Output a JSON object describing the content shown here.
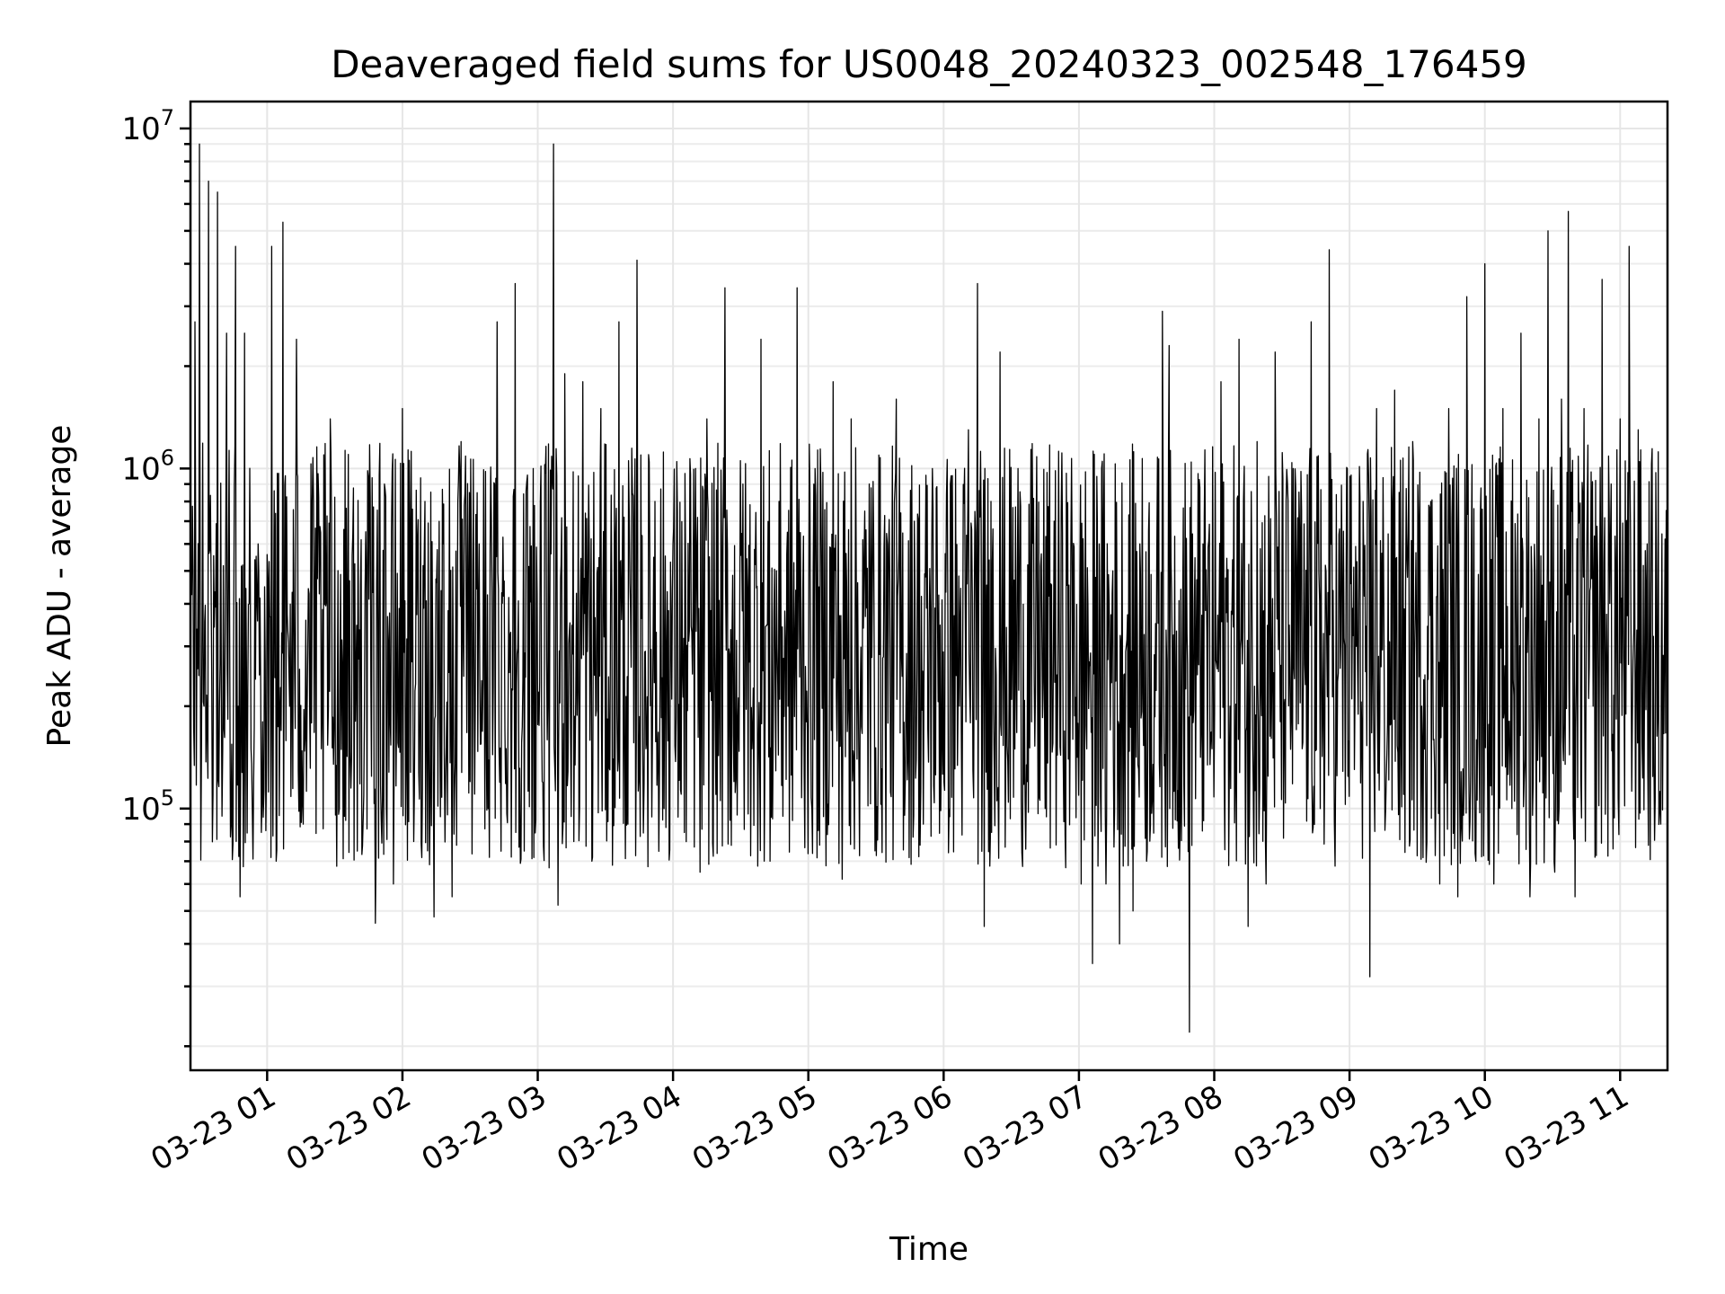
{
  "chart_data": {
    "type": "line",
    "title": "Deaveraged field sums for US0048_20240323_002548_176459",
    "xlabel": "Time",
    "ylabel": "Peak ADU - average",
    "x_scale": "time",
    "y_scale": "log",
    "xlim": [
      "2024-03-23 00:26",
      "2024-03-23 11:21"
    ],
    "ylim": [
      17000,
      12000000
    ],
    "grid": true,
    "x_ticks": [
      "03-23 01",
      "03-23 02",
      "03-23 03",
      "03-23 04",
      "03-23 05",
      "03-23 06",
      "03-23 07",
      "03-23 08",
      "03-23 09",
      "03-23 10",
      "03-23 11"
    ],
    "y_ticks": [
      {
        "base": "10",
        "exp": "5",
        "value": 100000
      },
      {
        "base": "10",
        "exp": "6",
        "value": 1000000
      },
      {
        "base": "10",
        "exp": "7",
        "value": 10000000
      }
    ],
    "line_color": "#000000",
    "series": [
      {
        "values": [
          [
            "00:26",
            500000
          ],
          [
            "00:28",
            2700000
          ],
          [
            "00:30",
            9000000
          ],
          [
            "00:32",
            200000
          ],
          [
            "00:34",
            7000000
          ],
          [
            "00:36",
            110000
          ],
          [
            "00:38",
            6500000
          ],
          [
            "00:40",
            95000
          ],
          [
            "00:42",
            2500000
          ],
          [
            "00:44",
            90000
          ],
          [
            "00:46",
            4500000
          ],
          [
            "00:48",
            55000
          ],
          [
            "00:50",
            2500000
          ],
          [
            "00:52",
            400000
          ],
          [
            "00:54",
            120000
          ],
          [
            "00:56",
            600000
          ],
          [
            "00:58",
            180000
          ],
          [
            "01:02",
            4500000
          ],
          [
            "01:04",
            70000
          ],
          [
            "01:07",
            5300000
          ],
          [
            "01:10",
            200000
          ],
          [
            "01:13",
            2400000
          ],
          [
            "01:16",
            90000
          ],
          [
            "01:20",
            800000
          ],
          [
            "01:24",
            150000
          ],
          [
            "01:28",
            1400000
          ],
          [
            "01:32",
            100000
          ],
          [
            "01:36",
            1100000
          ],
          [
            "01:40",
            75000
          ],
          [
            "01:44",
            500000
          ],
          [
            "01:48",
            46000
          ],
          [
            "01:52",
            900000
          ],
          [
            "01:56",
            60000
          ],
          [
            "02:00",
            1500000
          ],
          [
            "02:05",
            80000
          ],
          [
            "02:10",
            800000
          ],
          [
            "02:14",
            48000
          ],
          [
            "02:18",
            600000
          ],
          [
            "02:22",
            55000
          ],
          [
            "02:26",
            1200000
          ],
          [
            "02:30",
            120000
          ],
          [
            "02:34",
            600000
          ],
          [
            "02:38",
            100000
          ],
          [
            "02:42",
            2700000
          ],
          [
            "02:46",
            150000
          ],
          [
            "02:50",
            3500000
          ],
          [
            "02:54",
            75000
          ],
          [
            "02:58",
            1000000
          ],
          [
            "03:02",
            120000
          ],
          [
            "03:07",
            9000000
          ],
          [
            "03:09",
            52000
          ],
          [
            "03:12",
            1900000
          ],
          [
            "03:16",
            80000
          ],
          [
            "03:20",
            1800000
          ],
          [
            "03:24",
            70000
          ],
          [
            "03:28",
            1500000
          ],
          [
            "03:32",
            130000
          ],
          [
            "03:36",
            2700000
          ],
          [
            "03:40",
            90000
          ],
          [
            "03:44",
            4100000
          ],
          [
            "03:48",
            150000
          ],
          [
            "03:52",
            800000
          ],
          [
            "03:56",
            100000
          ],
          [
            "04:00",
            600000
          ],
          [
            "04:05",
            85000
          ],
          [
            "04:10",
            1000000
          ],
          [
            "04:12",
            65000
          ],
          [
            "04:15",
            1400000
          ],
          [
            "04:19",
            110000
          ],
          [
            "04:23",
            3400000
          ],
          [
            "04:27",
            120000
          ],
          [
            "04:31",
            900000
          ],
          [
            "04:35",
            150000
          ],
          [
            "04:39",
            2400000
          ],
          [
            "04:43",
            70000
          ],
          [
            "04:47",
            800000
          ],
          [
            "04:51",
            200000
          ],
          [
            "04:55",
            3400000
          ],
          [
            "04:59",
            180000
          ],
          [
            "05:03",
            1000000
          ],
          [
            "05:07",
            250000
          ],
          [
            "05:11",
            1800000
          ],
          [
            "05:15",
            62000
          ],
          [
            "05:19",
            1400000
          ],
          [
            "05:23",
            200000
          ],
          [
            "05:27",
            900000
          ],
          [
            "05:31",
            150000
          ],
          [
            "05:35",
            600000
          ],
          [
            "05:39",
            1600000
          ],
          [
            "05:43",
            120000
          ],
          [
            "05:47",
            700000
          ],
          [
            "05:51",
            90000
          ],
          [
            "05:55",
            1000000
          ],
          [
            "05:59",
            150000
          ],
          [
            "06:03",
            900000
          ],
          [
            "06:07",
            200000
          ],
          [
            "06:11",
            1300000
          ],
          [
            "06:15",
            3500000
          ],
          [
            "06:18",
            45000
          ],
          [
            "06:21",
            800000
          ],
          [
            "06:25",
            2200000
          ],
          [
            "06:29",
            200000
          ],
          [
            "06:33",
            1000000
          ],
          [
            "06:37",
            120000
          ],
          [
            "06:41",
            600000
          ],
          [
            "06:45",
            100000
          ],
          [
            "06:49",
            700000
          ],
          [
            "06:53",
            150000
          ],
          [
            "06:57",
            500000
          ],
          [
            "07:01",
            60000
          ],
          [
            "07:04",
            400000
          ],
          [
            "07:06",
            35000
          ],
          [
            "07:09",
            600000
          ],
          [
            "07:12",
            60000
          ],
          [
            "07:15",
            500000
          ],
          [
            "07:18",
            40000
          ],
          [
            "07:21",
            300000
          ],
          [
            "07:24",
            50000
          ],
          [
            "07:27",
            600000
          ],
          [
            "07:30",
            70000
          ],
          [
            "07:34",
            350000
          ],
          [
            "07:37",
            2900000
          ],
          [
            "07:40",
            2300000
          ],
          [
            "07:43",
            200000
          ],
          [
            "07:46",
            400000
          ],
          [
            "07:49",
            22000
          ],
          [
            "07:52",
            300000
          ],
          [
            "07:55",
            600000
          ],
          [
            "07:59",
            150000
          ],
          [
            "08:03",
            1800000
          ],
          [
            "08:07",
            200000
          ],
          [
            "08:11",
            2400000
          ],
          [
            "08:15",
            45000
          ],
          [
            "08:19",
            1200000
          ],
          [
            "08:23",
            60000
          ],
          [
            "08:27",
            2200000
          ],
          [
            "08:31",
            200000
          ],
          [
            "08:35",
            1000000
          ],
          [
            "08:39",
            150000
          ],
          [
            "08:43",
            2700000
          ],
          [
            "08:47",
            100000
          ],
          [
            "08:51",
            4400000
          ],
          [
            "08:55",
            250000
          ],
          [
            "08:59",
            1000000
          ],
          [
            "09:03",
            300000
          ],
          [
            "09:06",
            800000
          ],
          [
            "09:09",
            32000
          ],
          [
            "09:12",
            1500000
          ],
          [
            "09:16",
            100000
          ],
          [
            "09:20",
            1700000
          ],
          [
            "09:24",
            110000
          ],
          [
            "09:28",
            1200000
          ],
          [
            "09:32",
            200000
          ],
          [
            "09:36",
            800000
          ],
          [
            "09:40",
            60000
          ],
          [
            "09:44",
            1500000
          ],
          [
            "09:48",
            55000
          ],
          [
            "09:52",
            3200000
          ],
          [
            "09:56",
            70000
          ],
          [
            "10:00",
            4000000
          ],
          [
            "10:04",
            60000
          ],
          [
            "10:08",
            1500000
          ],
          [
            "10:12",
            100000
          ],
          [
            "10:16",
            2500000
          ],
          [
            "10:20",
            55000
          ],
          [
            "10:24",
            1400000
          ],
          [
            "10:28",
            5000000
          ],
          [
            "10:31",
            65000
          ],
          [
            "10:34",
            1600000
          ],
          [
            "10:37",
            5700000
          ],
          [
            "10:40",
            55000
          ],
          [
            "10:44",
            1500000
          ],
          [
            "10:48",
            200000
          ],
          [
            "10:52",
            3600000
          ],
          [
            "10:56",
            900000
          ],
          [
            "11:00",
            1400000
          ],
          [
            "11:04",
            4500000
          ],
          [
            "11:08",
            1300000
          ],
          [
            "11:12",
            600000
          ],
          [
            "11:15",
            140000
          ],
          [
            "11:18",
            90000
          ],
          [
            "11:21",
            55000
          ]
        ]
      }
    ]
  }
}
